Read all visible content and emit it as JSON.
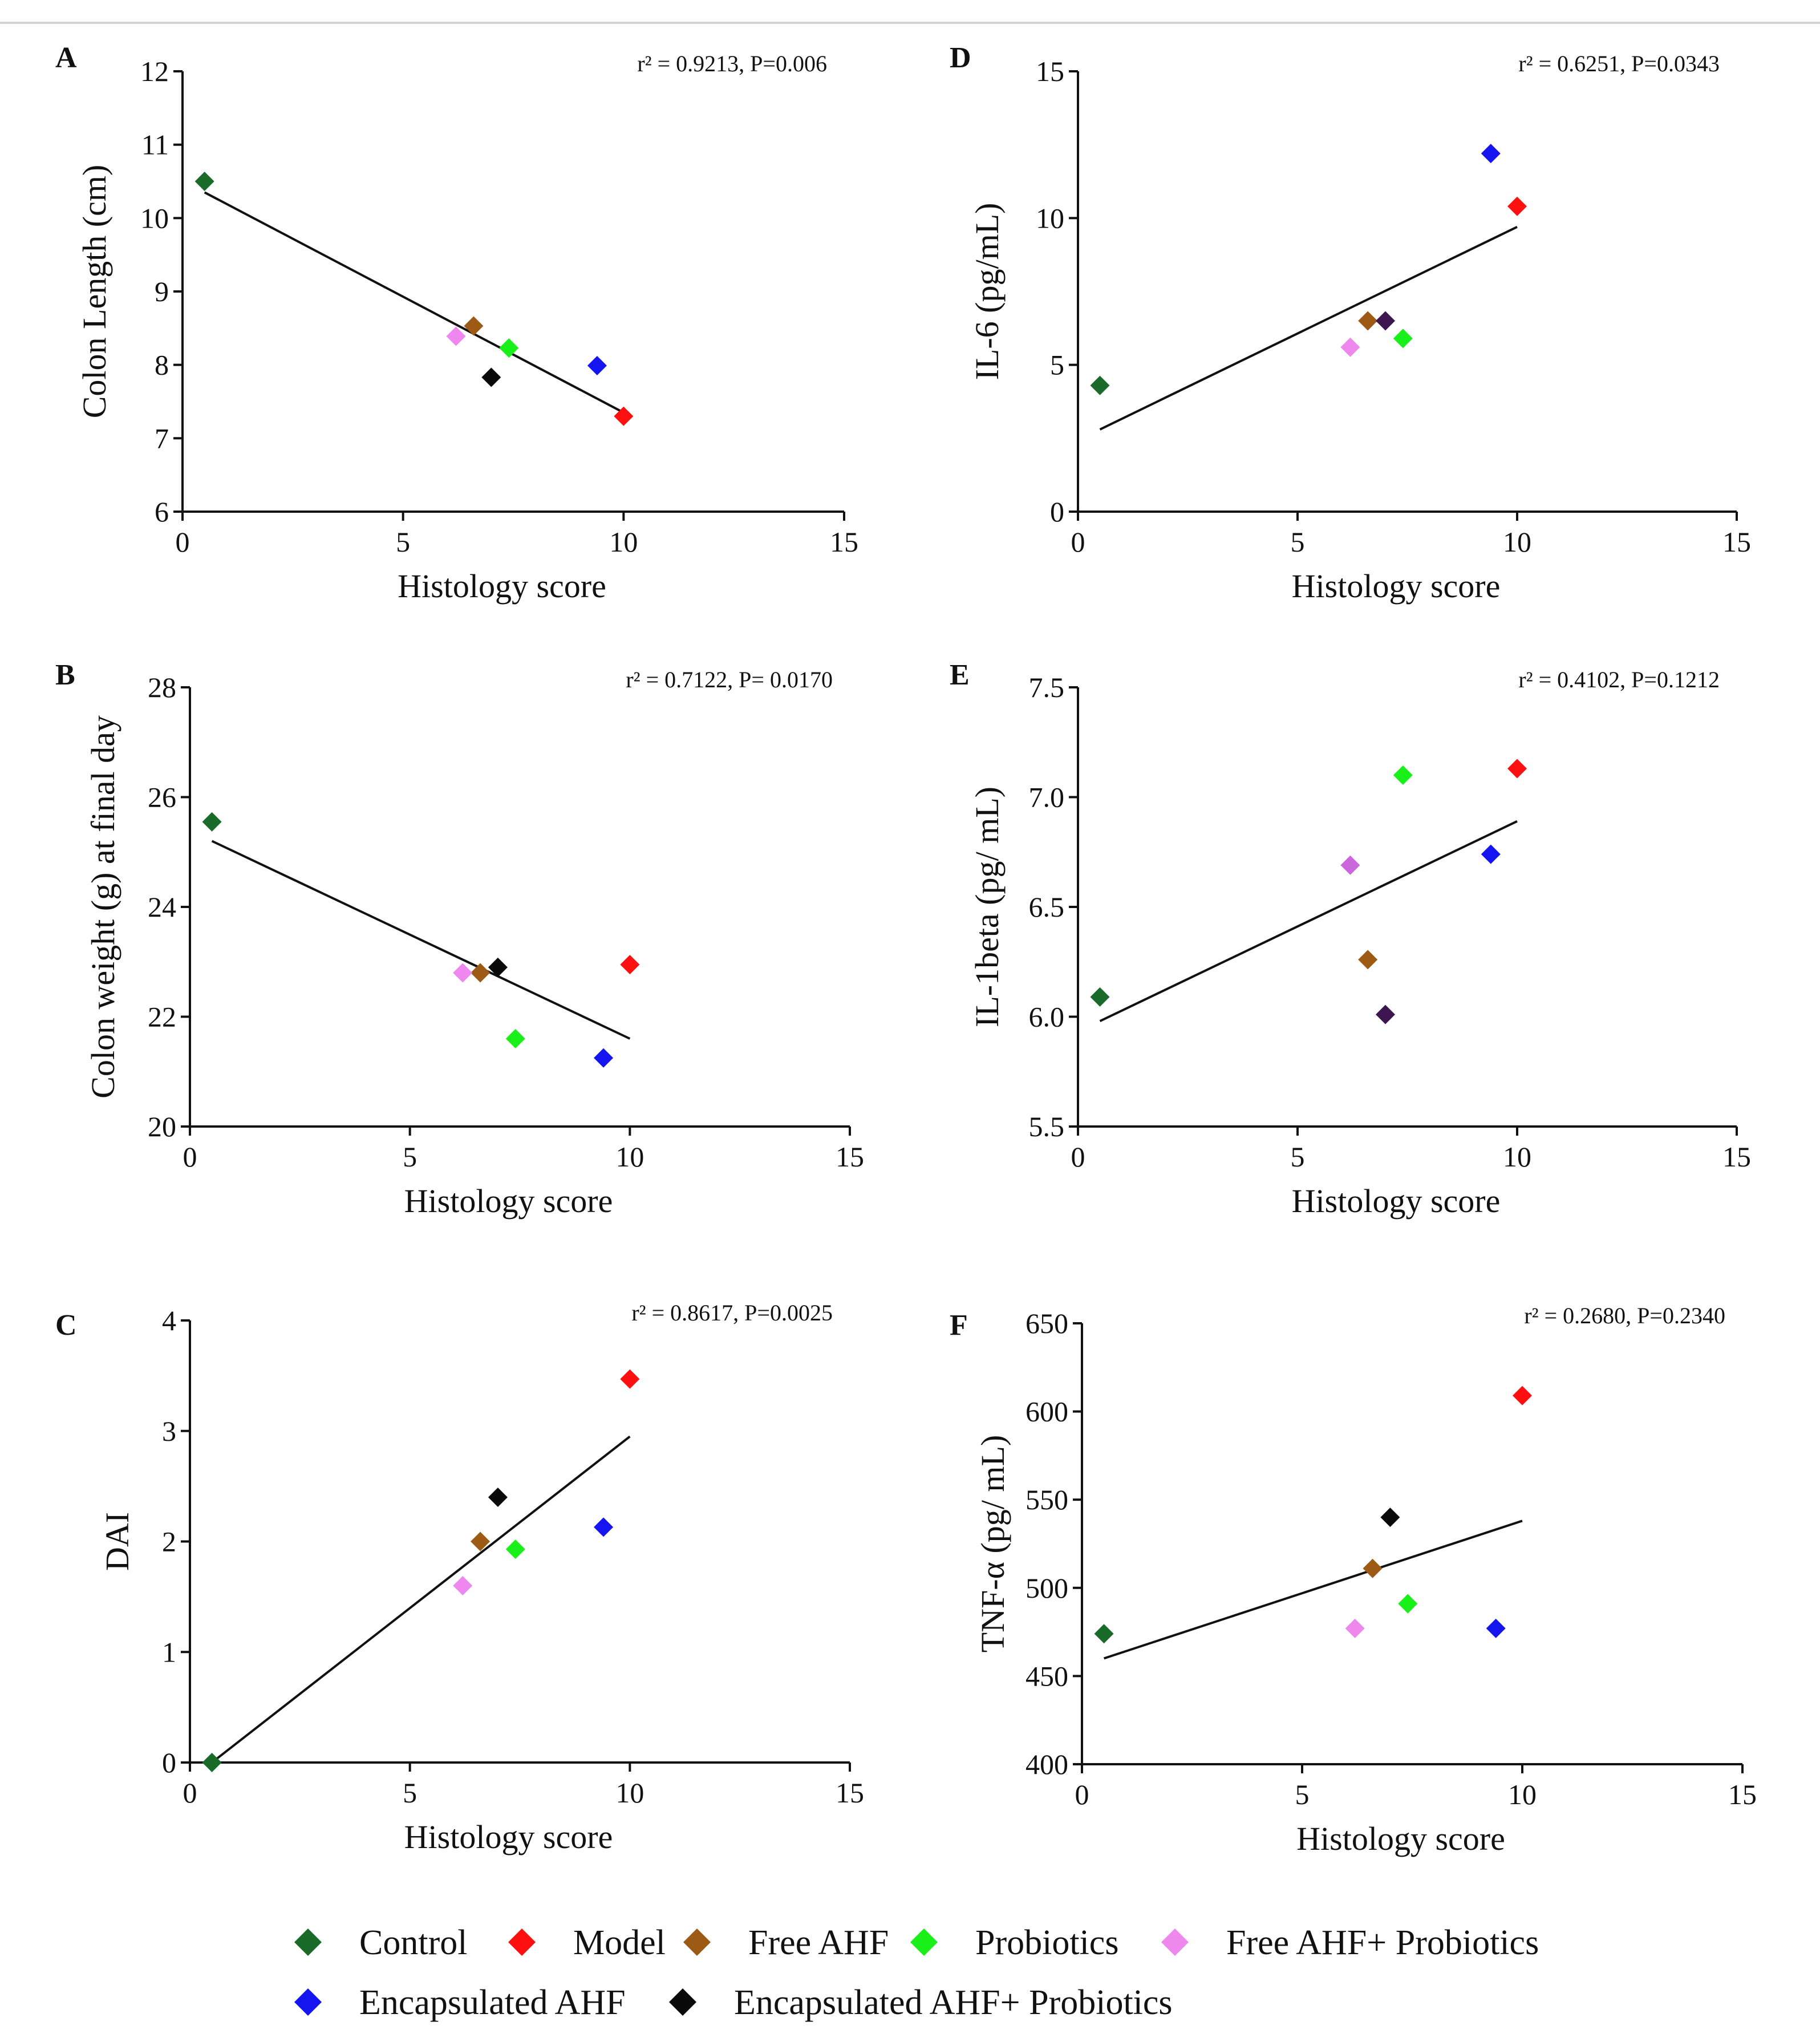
{
  "chart_data": [
    {
      "panel": "A",
      "type": "scatter",
      "stat": "r² = 0.9213,  P=0.006",
      "xlabel": "Histology score",
      "ylabel": "Colon Length (cm)",
      "xlim": [
        0,
        15
      ],
      "ylim": [
        6,
        12
      ],
      "xticks": [
        "0",
        "5",
        "10",
        "15"
      ],
      "xtick_values": [
        0,
        5,
        10,
        15
      ],
      "yticks": [
        "6",
        "7",
        "8",
        "9",
        "10",
        "11",
        "12"
      ],
      "ytick_values": [
        6,
        7,
        8,
        9,
        10,
        11,
        12
      ],
      "points": [
        {
          "group": "Control",
          "x": 0.5,
          "y": 10.5
        },
        {
          "group": "Model",
          "x": 10.0,
          "y": 7.3
        },
        {
          "group": "Free AHF",
          "x": 6.6,
          "y": 8.53
        },
        {
          "group": "Probiotics",
          "x": 7.4,
          "y": 8.23
        },
        {
          "group": "Free AHF+ Probiotics",
          "x": 6.2,
          "y": 8.39
        },
        {
          "group": "Encapsulated AHF",
          "x": 9.4,
          "y": 7.99
        },
        {
          "group": "Encapsulated AHF+ Probiotics",
          "x": 7.0,
          "y": 7.83
        }
      ],
      "fit": {
        "x": [
          0.5,
          10.0
        ],
        "y": [
          10.35,
          7.35
        ]
      }
    },
    {
      "panel": "B",
      "type": "scatter",
      "stat": "r² = 0.7122,  P= 0.0170",
      "xlabel": "Histology score",
      "ylabel": "Colon weight (g) at final day",
      "xlim": [
        0,
        15
      ],
      "ylim": [
        20,
        28
      ],
      "xticks": [
        "0",
        "5",
        "10",
        "15"
      ],
      "xtick_values": [
        0,
        5,
        10,
        15
      ],
      "yticks": [
        "20",
        "22",
        "24",
        "26",
        "28"
      ],
      "ytick_values": [
        20,
        22,
        24,
        26,
        28
      ],
      "points": [
        {
          "group": "Control",
          "x": 0.5,
          "y": 25.55
        },
        {
          "group": "Model",
          "x": 10.0,
          "y": 22.95
        },
        {
          "group": "Free AHF",
          "x": 6.6,
          "y": 22.8
        },
        {
          "group": "Probiotics",
          "x": 7.4,
          "y": 21.6
        },
        {
          "group": "Free AHF+ Probiotics",
          "x": 6.2,
          "y": 22.8
        },
        {
          "group": "Encapsulated AHF",
          "x": 9.4,
          "y": 21.25
        },
        {
          "group": "Encapsulated AHF+ Probiotics",
          "x": 7.0,
          "y": 22.9
        }
      ],
      "fit": {
        "x": [
          0.5,
          10.0
        ],
        "y": [
          25.2,
          21.6
        ]
      }
    },
    {
      "panel": "C",
      "type": "scatter",
      "stat": "r² = 0.8617,  P=0.0025",
      "xlabel": "Histology score",
      "ylabel": "DAI",
      "xlim": [
        0,
        15
      ],
      "ylim": [
        0,
        4
      ],
      "xticks": [
        "0",
        "5",
        "10",
        "15"
      ],
      "xtick_values": [
        0,
        5,
        10,
        15
      ],
      "yticks": [
        "0",
        "1",
        "2",
        "3",
        "4"
      ],
      "ytick_values": [
        0,
        1,
        2,
        3,
        4
      ],
      "points": [
        {
          "group": "Control",
          "x": 0.5,
          "y": 0.0
        },
        {
          "group": "Model",
          "x": 10.0,
          "y": 3.47
        },
        {
          "group": "Free AHF",
          "x": 6.6,
          "y": 2.0
        },
        {
          "group": "Probiotics",
          "x": 7.4,
          "y": 1.93
        },
        {
          "group": "Free AHF+ Probiotics",
          "x": 6.2,
          "y": 1.6
        },
        {
          "group": "Encapsulated AHF",
          "x": 9.4,
          "y": 2.13
        },
        {
          "group": "Encapsulated AHF+ Probiotics",
          "x": 7.0,
          "y": 2.4
        }
      ],
      "fit": {
        "x": [
          0.5,
          10.0
        ],
        "y": [
          0.0,
          2.95
        ]
      }
    },
    {
      "panel": "D",
      "type": "scatter",
      "stat": "r² = 0.6251,  P=0.0343",
      "xlabel": "Histology score",
      "ylabel": "IL-6 (pg/mL)",
      "xlim": [
        0,
        15
      ],
      "ylim": [
        0,
        15
      ],
      "xticks": [
        "0",
        "5",
        "10",
        "15"
      ],
      "xtick_values": [
        0,
        5,
        10,
        15
      ],
      "yticks": [
        "0",
        "5",
        "10",
        "15"
      ],
      "ytick_values": [
        0,
        5,
        10,
        15
      ],
      "points": [
        {
          "group": "Control",
          "x": 0.5,
          "y": 4.3
        },
        {
          "group": "Model",
          "x": 10.0,
          "y": 10.4
        },
        {
          "group": "Free AHF",
          "x": 6.6,
          "y": 6.5
        },
        {
          "group": "Probiotics",
          "x": 7.4,
          "y": 5.9
        },
        {
          "group": "Free AHF+ Probiotics",
          "x": 6.2,
          "y": 5.6
        },
        {
          "group": "Encapsulated AHF",
          "x": 9.4,
          "y": 12.2
        },
        {
          "group": "Encapsulated AHF+ Probiotics",
          "x": 7.0,
          "y": 6.5
        }
      ],
      "fit": {
        "x": [
          0.5,
          10.0
        ],
        "y": [
          2.8,
          9.7
        ]
      }
    },
    {
      "panel": "E",
      "type": "scatter",
      "stat": "r² = 0.4102,  P=0.1212",
      "xlabel": "Histology score",
      "ylabel": "IL-1beta (pg/ mL)",
      "xlim": [
        0,
        15
      ],
      "ylim": [
        5.5,
        7.5
      ],
      "xticks": [
        "0",
        "5",
        "10",
        "15"
      ],
      "xtick_values": [
        0,
        5,
        10,
        15
      ],
      "yticks": [
        "5.5",
        "6.0",
        "6.5",
        "7.0",
        "7.5"
      ],
      "ytick_values": [
        5.5,
        6.0,
        6.5,
        7.0,
        7.5
      ],
      "points": [
        {
          "group": "Control",
          "x": 0.5,
          "y": 6.09
        },
        {
          "group": "Model",
          "x": 10.0,
          "y": 7.13
        },
        {
          "group": "Free AHF",
          "x": 6.6,
          "y": 6.26
        },
        {
          "group": "Probiotics",
          "x": 7.4,
          "y": 7.1
        },
        {
          "group": "Free AHF+ Probiotics",
          "x": 6.2,
          "y": 6.69
        },
        {
          "group": "Encapsulated AHF",
          "x": 9.4,
          "y": 6.74
        },
        {
          "group": "Encapsulated AHF+ Probiotics",
          "x": 7.0,
          "y": 6.01
        }
      ],
      "fit": {
        "x": [
          0.5,
          10.0
        ],
        "y": [
          5.98,
          6.89
        ]
      }
    },
    {
      "panel": "F",
      "type": "scatter",
      "stat": "r² = 0.2680,  P=0.2340",
      "xlabel": "Histology score",
      "ylabel": "TNF-α (pg/ mL)",
      "xlim": [
        0,
        15
      ],
      "ylim": [
        400,
        650
      ],
      "xticks": [
        "0",
        "5",
        "10",
        "15"
      ],
      "xtick_values": [
        0,
        5,
        10,
        15
      ],
      "yticks": [
        "400",
        "450",
        "500",
        "550",
        "600",
        "650"
      ],
      "ytick_values": [
        400,
        450,
        500,
        550,
        600,
        650
      ],
      "points": [
        {
          "group": "Control",
          "x": 0.5,
          "y": 474
        },
        {
          "group": "Model",
          "x": 10.0,
          "y": 609
        },
        {
          "group": "Free AHF",
          "x": 6.6,
          "y": 511
        },
        {
          "group": "Probiotics",
          "x": 7.4,
          "y": 491
        },
        {
          "group": "Free AHF+ Probiotics",
          "x": 6.2,
          "y": 477
        },
        {
          "group": "Encapsulated AHF",
          "x": 9.4,
          "y": 477
        },
        {
          "group": "Encapsulated AHF+ Probiotics",
          "x": 7.0,
          "y": 540
        }
      ],
      "fit": {
        "x": [
          0.5,
          10.0
        ],
        "y": [
          460,
          538
        ]
      }
    }
  ],
  "legend": [
    {
      "label": "Control",
      "color": "#1a6b2a"
    },
    {
      "label": "Model",
      "color": "#ff1010"
    },
    {
      "label": "Free AHF",
      "color": "#9c5a14"
    },
    {
      "label": "Probiotics",
      "color": "#19f019"
    },
    {
      "label": "Free AHF+ Probiotics",
      "color": "#ee88ee"
    },
    {
      "label": "Encapsulated AHF",
      "color": "#1515f0"
    },
    {
      "label": "Encapsulated AHF+ Probiotics",
      "color": "#0a0a0a"
    }
  ],
  "point_color_overrides": {
    "D": {
      "Encapsulated AHF+ Probiotics": "#3d1650"
    },
    "E": {
      "Encapsulated AHF+ Probiotics": "#3d1650",
      "Free AHF+ Probiotics": "#cc66dd"
    }
  }
}
